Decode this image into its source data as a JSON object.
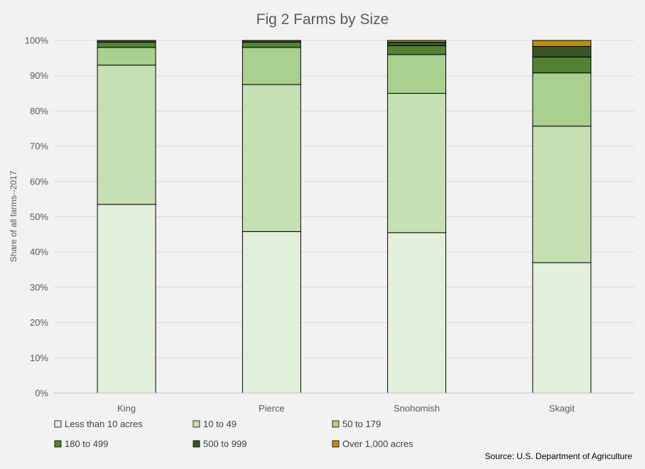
{
  "chart_data": {
    "type": "bar",
    "stacked": true,
    "title": "Fig 2 Farms by Size",
    "ylabel": "Share of all farms--2017",
    "xlabel": "",
    "ylim": [
      0,
      100
    ],
    "y_ticks": [
      "0%",
      "10%",
      "20%",
      "30%",
      "40%",
      "50%",
      "60%",
      "70%",
      "80%",
      "90%",
      "100%"
    ],
    "grid": true,
    "legend_position": "bottom",
    "categories": [
      "King",
      "Pierce",
      "Snohomish",
      "Skagit"
    ],
    "series": [
      {
        "name": "Less than 10 acres",
        "color": "#e2efda",
        "values": [
          53.5,
          45.8,
          45.5,
          37.0
        ]
      },
      {
        "name": "10 to 49",
        "color": "#c6e0b4",
        "values": [
          39.5,
          41.7,
          39.5,
          38.7
        ]
      },
      {
        "name": "50 to 179",
        "color": "#a9d08e",
        "values": [
          5.0,
          10.5,
          11.0,
          15.1
        ]
      },
      {
        "name": "180 to 499",
        "color": "#548235",
        "values": [
          1.5,
          1.5,
          2.5,
          4.5
        ]
      },
      {
        "name": "500 to 999",
        "color": "#375623",
        "values": [
          0.5,
          0.5,
          1.0,
          3.0
        ]
      },
      {
        "name": "Over 1,000 acres",
        "color": "#bf9000",
        "values": [
          0.0,
          0.0,
          0.5,
          1.7
        ]
      }
    ]
  },
  "source": "Source: U.S. Department of Agriculture"
}
